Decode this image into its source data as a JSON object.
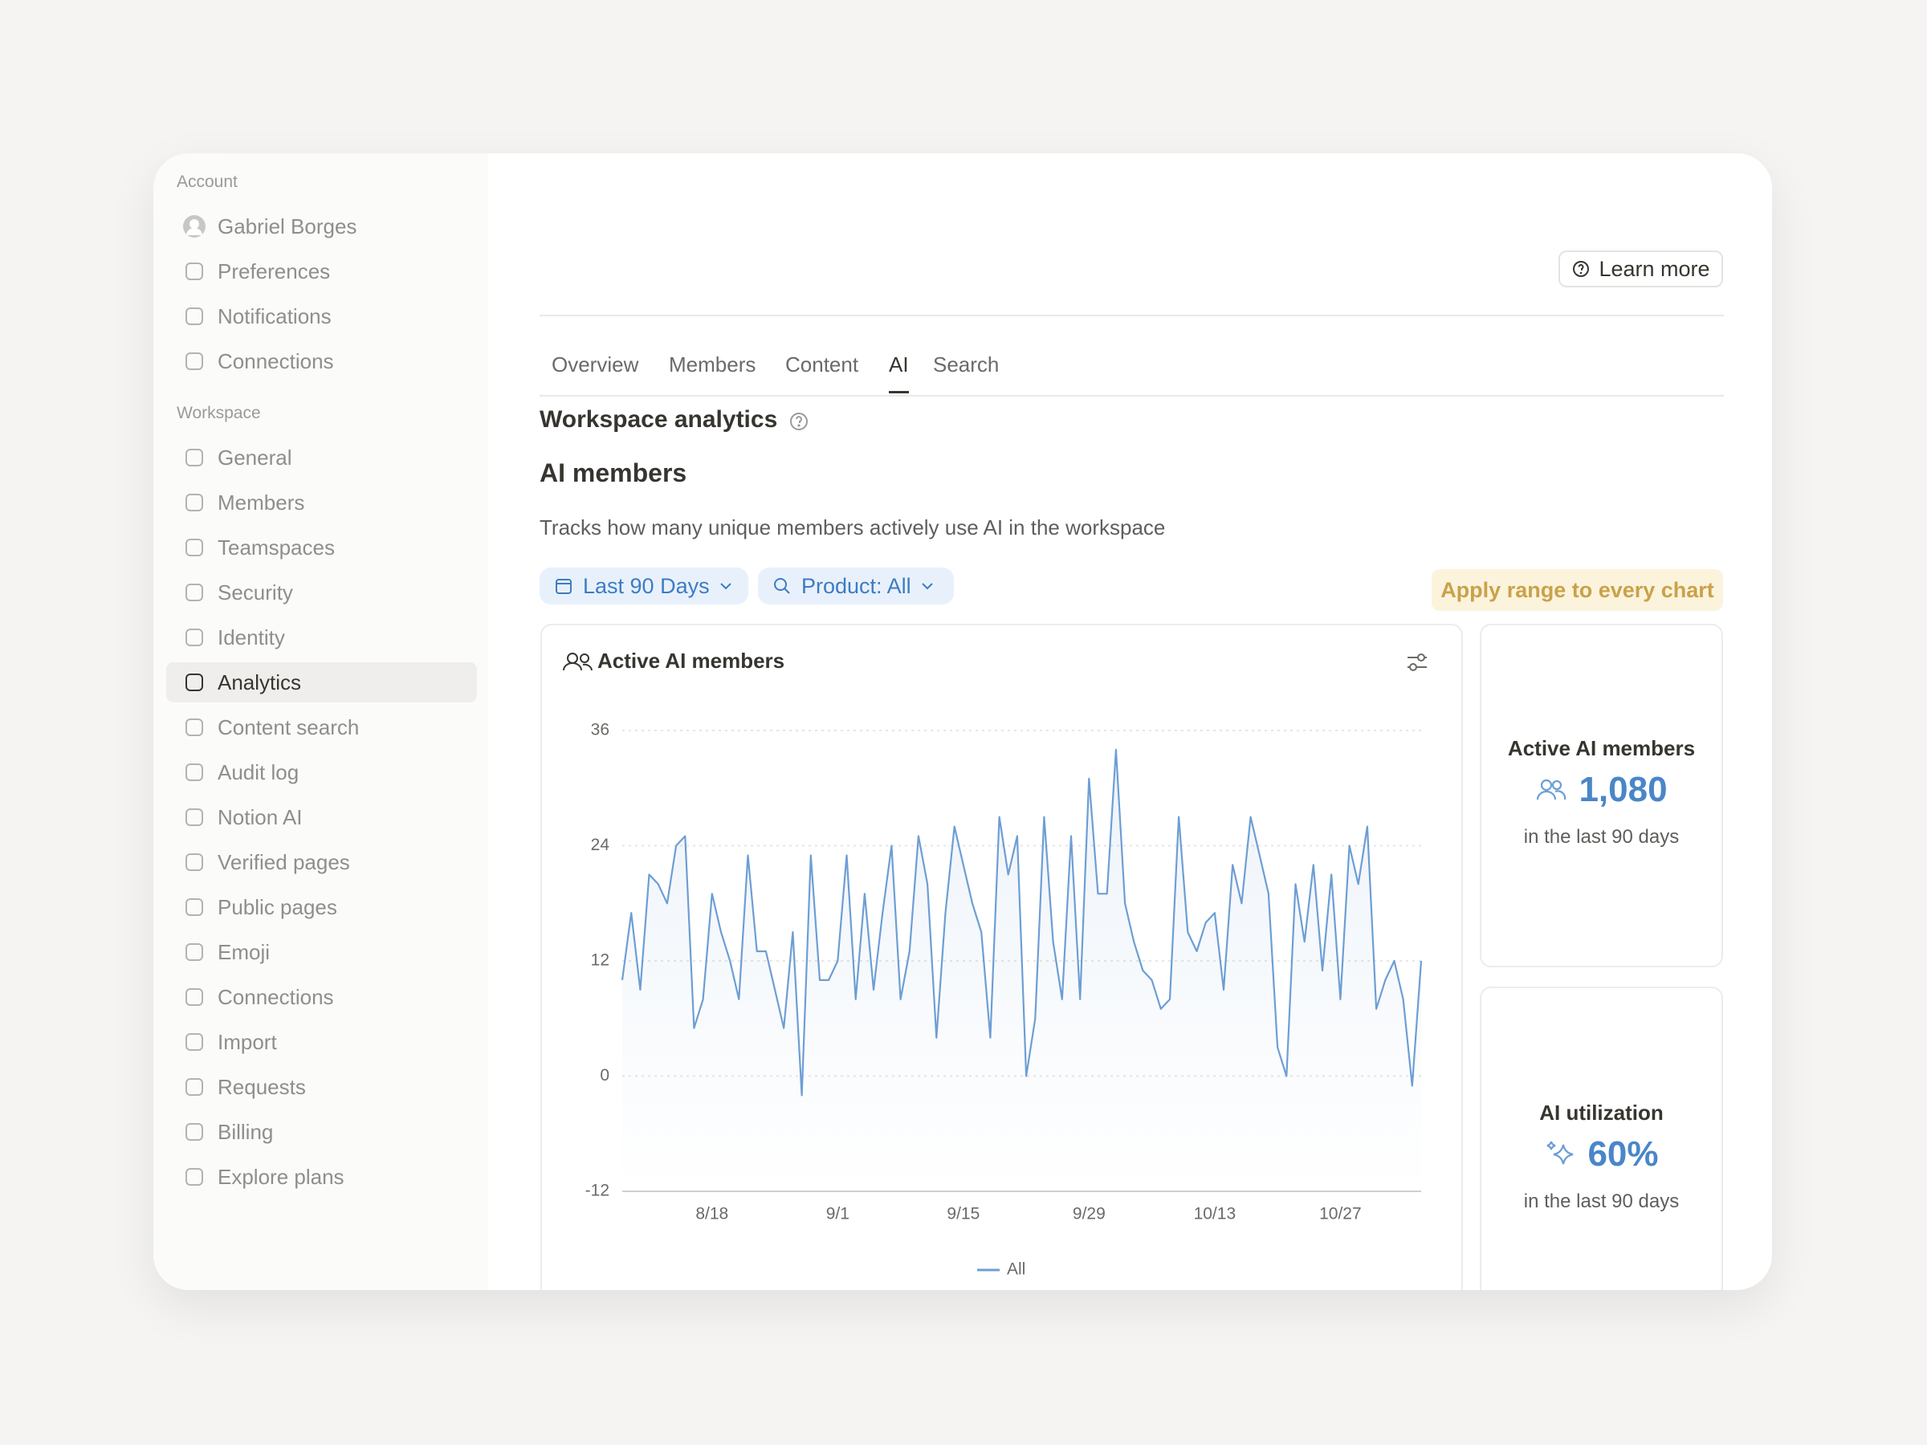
{
  "sidebar": {
    "sections": [
      {
        "label": "Account",
        "items": [
          "Gabriel Borges",
          "Preferences",
          "Notifications",
          "Connections"
        ]
      },
      {
        "label": "Workspace",
        "items": [
          "General",
          "Members",
          "Teamspaces",
          "Security",
          "Identity",
          "Analytics",
          "Content search",
          "Audit log",
          "Notion AI",
          "Verified pages",
          "Public pages",
          "Emoji",
          "Connections",
          "Import",
          "Requests",
          "Billing",
          "Explore plans"
        ]
      }
    ]
  },
  "header": {
    "title": "Workspace analytics",
    "button": "Learn more"
  },
  "tabs": [
    "Overview",
    "Members",
    "Content",
    "AI",
    "Search"
  ],
  "section": {
    "title": "AI members",
    "description": "Tracks how many unique members actively use AI in the workspace"
  },
  "filters": [
    "Last 90 Days",
    "Product: All"
  ],
  "apply_button": "Apply range to every chart",
  "chart_data": {
    "type": "line",
    "title": "Active AI members",
    "categories": [
      null,
      null,
      null,
      null,
      null,
      null,
      null,
      null,
      null,
      null,
      "8/18",
      null,
      null,
      null,
      null,
      null,
      null,
      null,
      null,
      null,
      null,
      null,
      null,
      null,
      "9/1",
      null,
      null,
      null,
      null,
      null,
      null,
      null,
      null,
      null,
      null,
      null,
      null,
      null,
      "9/15",
      null,
      null,
      null,
      null,
      null,
      null,
      null,
      null,
      null,
      null,
      null,
      null,
      null,
      "9/29",
      null,
      null,
      null,
      null,
      null,
      null,
      null,
      null,
      null,
      null,
      null,
      null,
      null,
      "10/13",
      null,
      null,
      null,
      null,
      null,
      null,
      null,
      null,
      null,
      null,
      null,
      null,
      null,
      "10/27",
      null,
      null,
      null,
      null,
      null,
      null,
      null,
      null,
      null
    ],
    "series": [
      {
        "name": "All",
        "color": "#6d9ed4",
        "values": [
          10,
          17,
          9,
          21,
          20,
          18,
          24,
          25,
          5,
          8,
          19,
          15,
          12,
          8,
          23,
          13,
          13,
          9,
          5,
          15,
          -2,
          23,
          10,
          10,
          12,
          23,
          8,
          19,
          9,
          17,
          24,
          8,
          13,
          25,
          20,
          4,
          17,
          26,
          22,
          18,
          15,
          4,
          27,
          21,
          25,
          0,
          6,
          27,
          14,
          8,
          25,
          8,
          31,
          19,
          19,
          34,
          18,
          14,
          11,
          10,
          7,
          8,
          27,
          15,
          13,
          16,
          17,
          9,
          22,
          18,
          27,
          23,
          19,
          3,
          0,
          20,
          14,
          22,
          11,
          21,
          8,
          24,
          20,
          26,
          7,
          10,
          12,
          8,
          -1,
          12
        ]
      }
    ],
    "ylim": [
      -12,
      36
    ],
    "yticks": [
      -12,
      0,
      12,
      24,
      36
    ],
    "grid": true,
    "legend": "bottom"
  },
  "stats": [
    {
      "label": "Active AI members",
      "value": "1,080",
      "caption": "in the last 90 days"
    },
    {
      "label": "AI utilization",
      "value": "60%",
      "caption": "in the last 90 days"
    }
  ]
}
